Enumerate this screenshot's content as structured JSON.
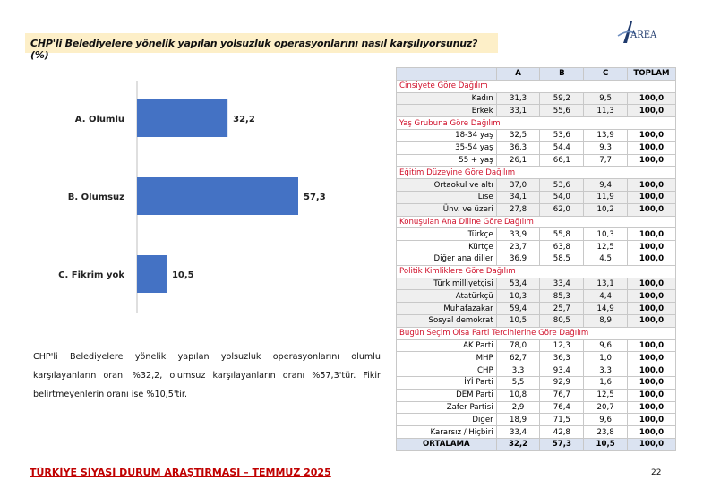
{
  "question": "CHP'li Belediyelere yönelik yapılan yolsuzluk operasyonlarını nasıl karşılıyorsunuz? (%)",
  "logo": "AREA",
  "chart_data": {
    "type": "bar",
    "orientation": "horizontal",
    "categories": [
      "A. Olumlu",
      "B. Olumsuz",
      "C. Fikrim yok"
    ],
    "values": [
      32.2,
      57.3,
      10.5
    ],
    "value_labels": [
      "32,2",
      "57,3",
      "10,5"
    ],
    "color": "#4472c4",
    "xlim": [
      0,
      60
    ]
  },
  "summary": "CHP'li Belediyelere yönelik yapılan yolsuzluk operasyonlarını olumlu karşılayanların oranı %32,2, olumsuz karşılayanların oranı %57,3'tür. Fikir belirtmeyenlerin oranı ise %10,5'tir.",
  "table": {
    "headers": [
      "",
      "A",
      "B",
      "C",
      "TOPLAM"
    ],
    "sections": [
      {
        "title": "Cinsiyete Göre Dağılım",
        "rows": [
          [
            "Kadın",
            "31,3",
            "59,2",
            "9,5",
            "100,0"
          ],
          [
            "Erkek",
            "33,1",
            "55,6",
            "11,3",
            "100,0"
          ]
        ]
      },
      {
        "title": "Yaş Grubuna Göre Dağılım",
        "rows": [
          [
            "18-34 yaş",
            "32,5",
            "53,6",
            "13,9",
            "100,0"
          ],
          [
            "35-54 yaş",
            "36,3",
            "54,4",
            "9,3",
            "100,0"
          ],
          [
            "55 + yaş",
            "26,1",
            "66,1",
            "7,7",
            "100,0"
          ]
        ]
      },
      {
        "title": "Eğitim Düzeyine Göre Dağılım",
        "rows": [
          [
            "Ortaokul ve altı",
            "37,0",
            "53,6",
            "9,4",
            "100,0"
          ],
          [
            "Lise",
            "34,1",
            "54,0",
            "11,9",
            "100,0"
          ],
          [
            "Ünv. ve üzeri",
            "27,8",
            "62,0",
            "10,2",
            "100,0"
          ]
        ]
      },
      {
        "title": "Konuşulan Ana Diline Göre Dağılım",
        "rows": [
          [
            "Türkçe",
            "33,9",
            "55,8",
            "10,3",
            "100,0"
          ],
          [
            "Kürtçe",
            "23,7",
            "63,8",
            "12,5",
            "100,0"
          ],
          [
            "Diğer ana diller",
            "36,9",
            "58,5",
            "4,5",
            "100,0"
          ]
        ]
      },
      {
        "title": "Politik Kimliklere Göre Dağılım",
        "rows": [
          [
            "Türk milliyetçisi",
            "53,4",
            "33,4",
            "13,1",
            "100,0"
          ],
          [
            "Atatürkçü",
            "10,3",
            "85,3",
            "4,4",
            "100,0"
          ],
          [
            "Muhafazakar",
            "59,4",
            "25,7",
            "14,9",
            "100,0"
          ],
          [
            "Sosyal demokrat",
            "10,5",
            "80,5",
            "8,9",
            "100,0"
          ]
        ]
      },
      {
        "title": "Bugün Seçim Olsa Parti Tercihlerine Göre Dağılım",
        "rows": [
          [
            "AK Parti",
            "78,0",
            "12,3",
            "9,6",
            "100,0"
          ],
          [
            "MHP",
            "62,7",
            "36,3",
            "1,0",
            "100,0"
          ],
          [
            "CHP",
            "3,3",
            "93,4",
            "3,3",
            "100,0"
          ],
          [
            "İYİ Parti",
            "5,5",
            "92,9",
            "1,6",
            "100,0"
          ],
          [
            "DEM Parti",
            "10,8",
            "76,7",
            "12,5",
            "100,0"
          ],
          [
            "Zafer Partisi",
            "2,9",
            "76,4",
            "20,7",
            "100,0"
          ],
          [
            "Diğer",
            "18,9",
            "71,5",
            "9,6",
            "100,0"
          ],
          [
            "Kararsız / Hiçbiri",
            "33,4",
            "42,8",
            "23,8",
            "100,0"
          ]
        ]
      }
    ],
    "average": [
      "ORTALAMA",
      "32,2",
      "57,3",
      "10,5",
      "100,0"
    ]
  },
  "footer": "TÜRKİYE SİYASİ DURUM ARAŞTIRMASI – TEMMUZ 2025",
  "page_number": "22"
}
